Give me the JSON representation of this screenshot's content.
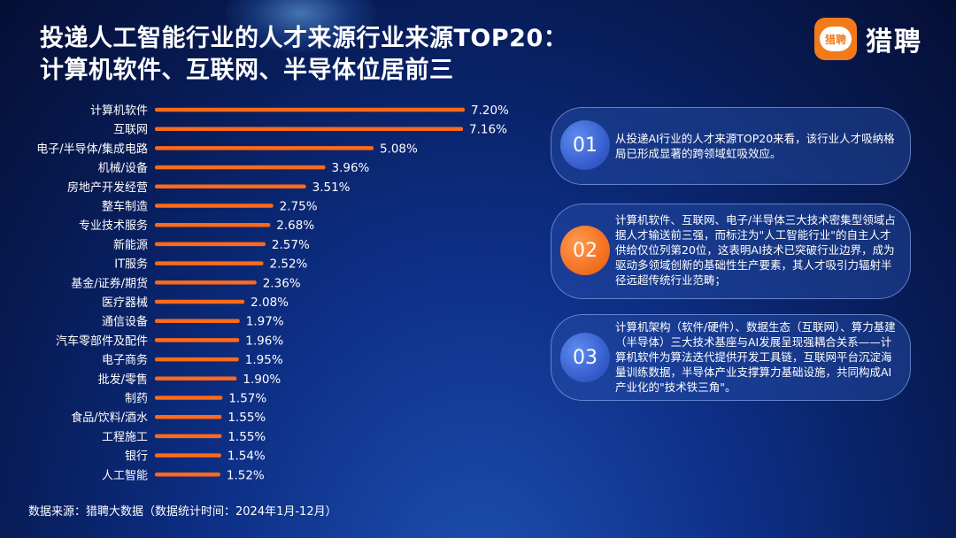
{
  "title": {
    "line1": "投递人工智能行业的人才来源行业来源TOP20：",
    "line2": "计算机软件、互联网、半导体位居前三"
  },
  "logo": {
    "mark_text": "猎聘",
    "text": "猎聘"
  },
  "chart_data": {
    "type": "bar",
    "orientation": "horizontal",
    "categories": [
      "计算机软件",
      "互联网",
      "电子/半导体/集成电路",
      "机械/设备",
      "房地产开发经营",
      "整车制造",
      "专业技术服务",
      "新能源",
      "IT服务",
      "基金/证券/期货",
      "医疗器械",
      "通信设备",
      "汽车零部件及配件",
      "电子商务",
      "批发/零售",
      "制药",
      "食品/饮料/酒水",
      "工程施工",
      "银行",
      "人工智能"
    ],
    "values": [
      7.2,
      7.16,
      5.08,
      3.96,
      3.51,
      2.75,
      2.68,
      2.57,
      2.52,
      2.36,
      2.08,
      1.97,
      1.96,
      1.95,
      1.9,
      1.57,
      1.55,
      1.55,
      1.54,
      1.52
    ],
    "value_labels": [
      "7.20%",
      "7.16%",
      "5.08%",
      "3.96%",
      "3.51%",
      "2.75%",
      "2.68%",
      "2.57%",
      "2.52%",
      "2.36%",
      "2.08%",
      "1.97%",
      "1.96%",
      "1.95%",
      "1.90%",
      "1.57%",
      "1.55%",
      "1.55%",
      "1.54%",
      "1.52%"
    ],
    "bar_color": "#ff6a1a",
    "grid": false
  },
  "cards": [
    {
      "number": "01",
      "color": "blue",
      "text": "从投递AI行业的人才来源TOP20来看，该行业人才吸纳格局已形成显著的跨领域虹吸效应。"
    },
    {
      "number": "02",
      "color": "orange",
      "text": "计算机软件、互联网、电子/半导体三大技术密集型领域占据人才输送前三强，而标注为\"人工智能行业\"的自主人才供给仅位列第20位，这表明AI技术已突破行业边界，成为驱动多领域创新的基础性生产要素，其人才吸引力辐射半径远超传统行业范畴；"
    },
    {
      "number": "03",
      "color": "blue",
      "text": "计算机架构（软件/硬件）、数据生态（互联网）、算力基建（半导体）三大技术基座与AI发展呈现强耦合关系——计算机软件为算法迭代提供开发工具链，互联网平台沉淀海量训练数据，半导体产业支撑算力基础设施，共同构成AI产业化的\"技术铁三角\"。"
    }
  ],
  "source": "数据来源：猎聘大数据（数据统计时间：2024年1月-12月）"
}
